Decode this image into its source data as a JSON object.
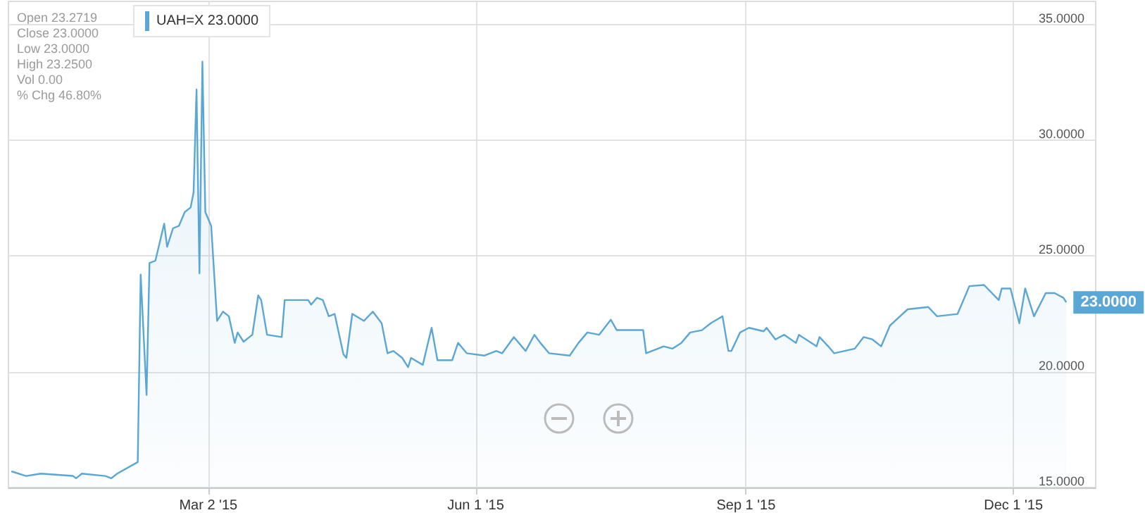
{
  "chart_data": {
    "type": "area",
    "x": [
      "2014-12-25",
      "2014-12-30",
      "2015-01-04",
      "2015-01-15",
      "2015-01-16",
      "2015-01-18",
      "2015-01-26",
      "2015-01-28",
      "2015-01-30",
      "2015-02-06",
      "2015-02-07",
      "2015-02-09",
      "2015-02-10",
      "2015-02-12",
      "2015-02-15",
      "2015-02-16",
      "2015-02-18",
      "2015-02-20",
      "2015-02-22",
      "2015-02-24",
      "2015-02-25",
      "2015-02-26",
      "2015-02-27",
      "2015-02-28",
      "2015-03-01",
      "2015-03-03",
      "2015-03-05",
      "2015-03-07",
      "2015-03-09",
      "2015-03-11",
      "2015-03-12",
      "2015-03-14",
      "2015-03-17",
      "2015-03-19",
      "2015-03-20",
      "2015-03-22",
      "2015-03-27",
      "2015-03-28",
      "2015-04-05",
      "2015-04-06",
      "2015-04-08",
      "2015-04-10",
      "2015-04-12",
      "2015-04-14",
      "2015-04-17",
      "2015-04-18",
      "2015-04-20",
      "2015-04-24",
      "2015-04-27",
      "2015-04-30",
      "2015-05-02",
      "2015-05-04",
      "2015-05-07",
      "2015-05-09",
      "2015-05-10",
      "2015-05-14",
      "2015-05-17",
      "2015-05-19",
      "2015-05-24",
      "2015-05-26",
      "2015-05-29",
      "2015-06-04",
      "2015-06-08",
      "2015-06-10",
      "2015-06-14",
      "2015-06-18",
      "2015-06-21",
      "2015-06-23",
      "2015-06-26",
      "2015-07-03",
      "2015-07-06",
      "2015-07-09",
      "2015-07-13",
      "2015-07-17",
      "2015-07-19",
      "2015-07-28",
      "2015-07-29",
      "2015-08-04",
      "2015-08-07",
      "2015-08-10",
      "2015-08-13",
      "2015-08-17",
      "2015-08-20",
      "2015-08-24",
      "2015-08-26",
      "2015-08-27",
      "2015-08-30",
      "2015-09-02",
      "2015-09-07",
      "2015-09-08",
      "2015-09-11",
      "2015-09-14",
      "2015-09-18",
      "2015-09-19",
      "2015-09-25",
      "2015-09-26",
      "2015-09-29",
      "2015-10-01",
      "2015-10-08",
      "2015-10-11",
      "2015-10-14",
      "2015-10-17",
      "2015-10-20",
      "2015-10-26",
      "2015-11-02",
      "2015-11-05",
      "2015-11-12",
      "2015-11-16",
      "2015-11-21",
      "2015-11-26",
      "2015-11-27",
      "2015-11-30",
      "2015-12-03",
      "2015-12-05",
      "2015-12-08",
      "2015-12-12",
      "2015-12-15",
      "2015-12-18",
      "2015-12-19"
    ],
    "series": [
      {
        "name": "UAH=X 23.0000",
        "color": "#5aa7d6",
        "values": [
          15.7,
          15.5,
          15.6,
          15.5,
          15.4,
          15.6,
          15.5,
          15.4,
          15.6,
          16.1,
          24.2,
          19.0,
          24.7,
          24.8,
          26.4,
          25.4,
          26.2,
          26.3,
          26.9,
          27.1,
          27.75,
          32.2,
          24.25,
          33.4,
          26.9,
          26.3,
          22.2,
          22.6,
          22.4,
          21.25,
          21.7,
          21.3,
          21.6,
          23.3,
          23.1,
          21.6,
          21.5,
          23.1,
          23.1,
          22.9,
          23.2,
          23.1,
          22.4,
          22.5,
          20.75,
          20.6,
          22.5,
          22.2,
          22.6,
          22.1,
          20.8,
          20.9,
          20.6,
          20.2,
          20.6,
          20.3,
          21.9,
          20.5,
          20.5,
          21.25,
          20.8,
          20.7,
          20.9,
          20.8,
          21.5,
          20.9,
          21.6,
          21.25,
          20.8,
          20.7,
          21.25,
          21.7,
          21.6,
          22.25,
          21.8,
          21.8,
          20.8,
          21.1,
          21.0,
          21.25,
          21.7,
          21.8,
          22.1,
          22.4,
          20.9,
          20.9,
          21.7,
          21.9,
          21.75,
          21.9,
          21.4,
          21.6,
          21.25,
          21.6,
          21.1,
          21.5,
          21.1,
          20.8,
          21.0,
          21.5,
          21.4,
          21.1,
          22.0,
          22.7,
          22.8,
          22.4,
          22.5,
          23.7,
          23.75,
          23.1,
          23.6,
          23.6,
          22.1,
          23.6,
          22.4,
          23.4,
          23.4,
          23.2,
          23.0
        ]
      }
    ],
    "xlim": [
      "2014-12-24",
      "2015-12-29"
    ],
    "xticks": [
      {
        "value": "2015-03-02",
        "label": "Mar 2 '15"
      },
      {
        "value": "2015-06-01",
        "label": "Jun 1 '15"
      },
      {
        "value": "2015-09-01",
        "label": "Sep 1 '15"
      },
      {
        "value": "2015-12-01",
        "label": "Dec 1 '15"
      }
    ],
    "ylim": [
      15,
      36
    ],
    "yticks": [
      {
        "value": 15,
        "label": "15.0000"
      },
      {
        "value": 20,
        "label": "20.0000"
      },
      {
        "value": 25,
        "label": "25.0000"
      },
      {
        "value": 30,
        "label": "30.0000"
      },
      {
        "value": 35,
        "label": "35.0000"
      }
    ],
    "grid": true,
    "legend": "top left",
    "annotations": [
      "Open 23.2719",
      "Close 23.0000",
      "Low 23.0000",
      "High 23.2500",
      "Vol 0.00",
      "% Chg 46.80%",
      {
        "text": "23.0000",
        "x": "2015-12-19",
        "y": 23
      }
    ]
  }
}
